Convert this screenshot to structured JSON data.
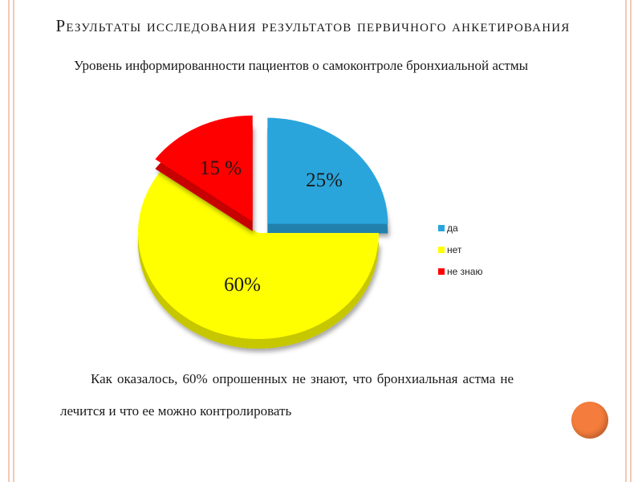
{
  "slide": {
    "title": "Результаты исследования результатов первичного анкетирования",
    "subtitle": "Уровень информированности пациентов о самоконтроле бронхиальной астмы",
    "body": "Как оказалось, 60% опрошенных не знают, что бронхиальная астма не лечится и что ее можно контролировать"
  },
  "chart_data": {
    "type": "pie",
    "title": "",
    "categories": [
      "да",
      "нет",
      "не знаю"
    ],
    "values": [
      25,
      60,
      15
    ],
    "data_labels": [
      "25%",
      "60%",
      "15 %"
    ],
    "colors": [
      "#2aa5dc",
      "#ffff00",
      "#ff0000"
    ],
    "legend_position": "right"
  },
  "colors": {
    "accent": "#f47c3c",
    "rule": "#f3c9b7"
  }
}
